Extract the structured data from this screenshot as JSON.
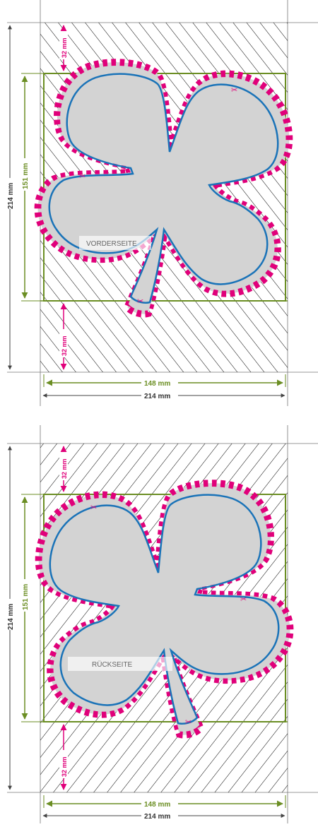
{
  "colors": {
    "trim_line": "#6b8e23",
    "cut_line": "#e0007a",
    "safe_line": "#1a73b8",
    "motif_fill": "#d3d3d3",
    "hatch": "#000000",
    "guide": "#555555"
  },
  "icons": {
    "cut_marker": "scissors-icon"
  },
  "panels": [
    {
      "side_label": "VORDERSEITE",
      "dim_total_height": "214 mm",
      "dim_motif_height": "151 mm",
      "dim_margin_top": "32 mm",
      "dim_margin_bottom": "32 mm",
      "dim_motif_width": "148 mm",
      "dim_total_width": "214 mm"
    },
    {
      "side_label": "RÜCKSEITE",
      "dim_total_height": "214 mm",
      "dim_motif_height": "151 mm",
      "dim_margin_top": "32 mm",
      "dim_margin_bottom": "32 mm",
      "dim_motif_width": "148 mm",
      "dim_total_width": "214 mm"
    }
  ]
}
